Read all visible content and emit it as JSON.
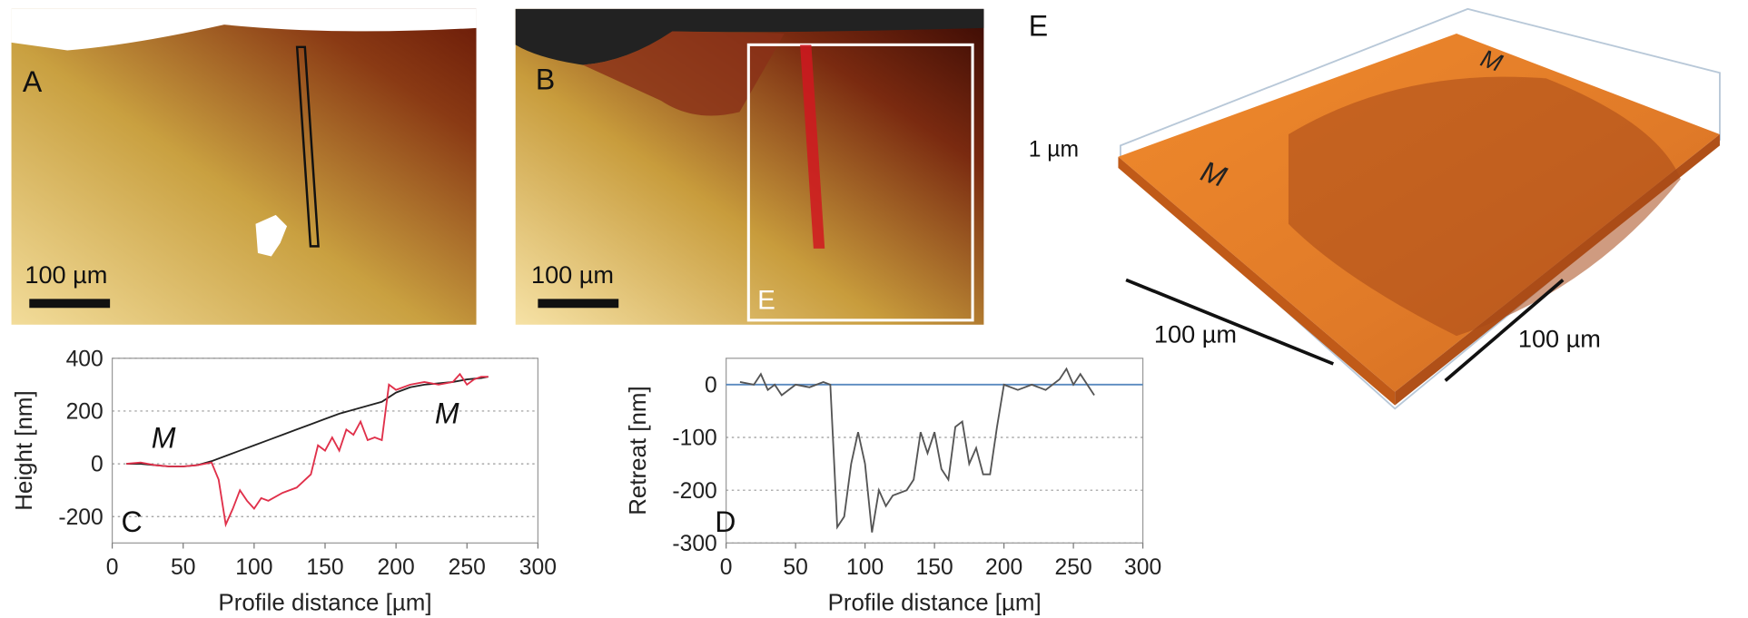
{
  "panels": {
    "A": {
      "label": "A",
      "scale": "100 µm"
    },
    "B": {
      "label": "B",
      "scale": "100 µm",
      "inset_label": "E"
    },
    "E": {
      "label": "E",
      "z_scale": "1 µm",
      "x_scale": "100 µm",
      "y_scale": "100 µm",
      "marks": [
        "M",
        "M"
      ]
    }
  },
  "chart_data": [
    {
      "type": "line",
      "panel_label": "C",
      "xlabel": "Profile distance [µm]",
      "ylabel": "Height [nm]",
      "annotations": [
        "M",
        "M"
      ],
      "xlim": [
        0,
        300
      ],
      "xticks": [
        0,
        50,
        100,
        150,
        200,
        250,
        300
      ],
      "ylim": [
        -300,
        400
      ],
      "yticks": [
        -200,
        0,
        200,
        400
      ],
      "grid": true,
      "series": [
        {
          "color": "#222222",
          "x": [
            10,
            20,
            30,
            40,
            50,
            60,
            70,
            80,
            90,
            100,
            110,
            120,
            130,
            140,
            150,
            160,
            170,
            180,
            190,
            200,
            210,
            220,
            230,
            240,
            250,
            260,
            265
          ],
          "values": [
            0,
            0,
            -5,
            -10,
            -10,
            -5,
            10,
            30,
            50,
            70,
            90,
            110,
            130,
            150,
            170,
            190,
            205,
            220,
            235,
            270,
            290,
            300,
            305,
            310,
            320,
            325,
            330
          ]
        },
        {
          "color": "#e0304a",
          "x": [
            10,
            20,
            30,
            40,
            50,
            60,
            70,
            75,
            80,
            85,
            90,
            95,
            100,
            105,
            110,
            120,
            130,
            140,
            145,
            150,
            155,
            160,
            165,
            170,
            175,
            180,
            185,
            190,
            195,
            200,
            210,
            220,
            230,
            240,
            245,
            250,
            255,
            260,
            265
          ],
          "values": [
            0,
            5,
            -5,
            -10,
            -10,
            -5,
            5,
            -60,
            -230,
            -170,
            -100,
            -140,
            -170,
            -130,
            -140,
            -110,
            -90,
            -40,
            70,
            50,
            100,
            50,
            130,
            110,
            160,
            90,
            100,
            90,
            300,
            280,
            300,
            310,
            300,
            310,
            340,
            300,
            320,
            330,
            330
          ]
        }
      ]
    },
    {
      "type": "line",
      "panel_label": "D",
      "xlabel": "Profile distance [µm]",
      "ylabel": "Retreat [nm]",
      "annotations": [],
      "xlim": [
        0,
        300
      ],
      "xticks": [
        0,
        50,
        100,
        150,
        200,
        250,
        300
      ],
      "ylim": [
        -300,
        50
      ],
      "yticks": [
        -300,
        -200,
        -100,
        0
      ],
      "grid": true,
      "series": [
        {
          "color": "#555555",
          "x": [
            10,
            20,
            25,
            30,
            35,
            40,
            50,
            60,
            70,
            75,
            78,
            80,
            85,
            90,
            95,
            100,
            105,
            110,
            115,
            120,
            130,
            135,
            140,
            145,
            150,
            155,
            160,
            165,
            170,
            175,
            180,
            185,
            190,
            195,
            200,
            210,
            220,
            230,
            240,
            245,
            250,
            255,
            260,
            265
          ],
          "values": [
            5,
            0,
            20,
            -10,
            0,
            -20,
            0,
            -5,
            5,
            0,
            -160,
            -270,
            -250,
            -150,
            -90,
            -150,
            -280,
            -200,
            -230,
            -210,
            -200,
            -180,
            -90,
            -130,
            -90,
            -160,
            -180,
            -80,
            -70,
            -150,
            -120,
            -170,
            -170,
            -80,
            0,
            -10,
            0,
            -10,
            10,
            30,
            0,
            20,
            0,
            -20
          ]
        }
      ]
    }
  ]
}
